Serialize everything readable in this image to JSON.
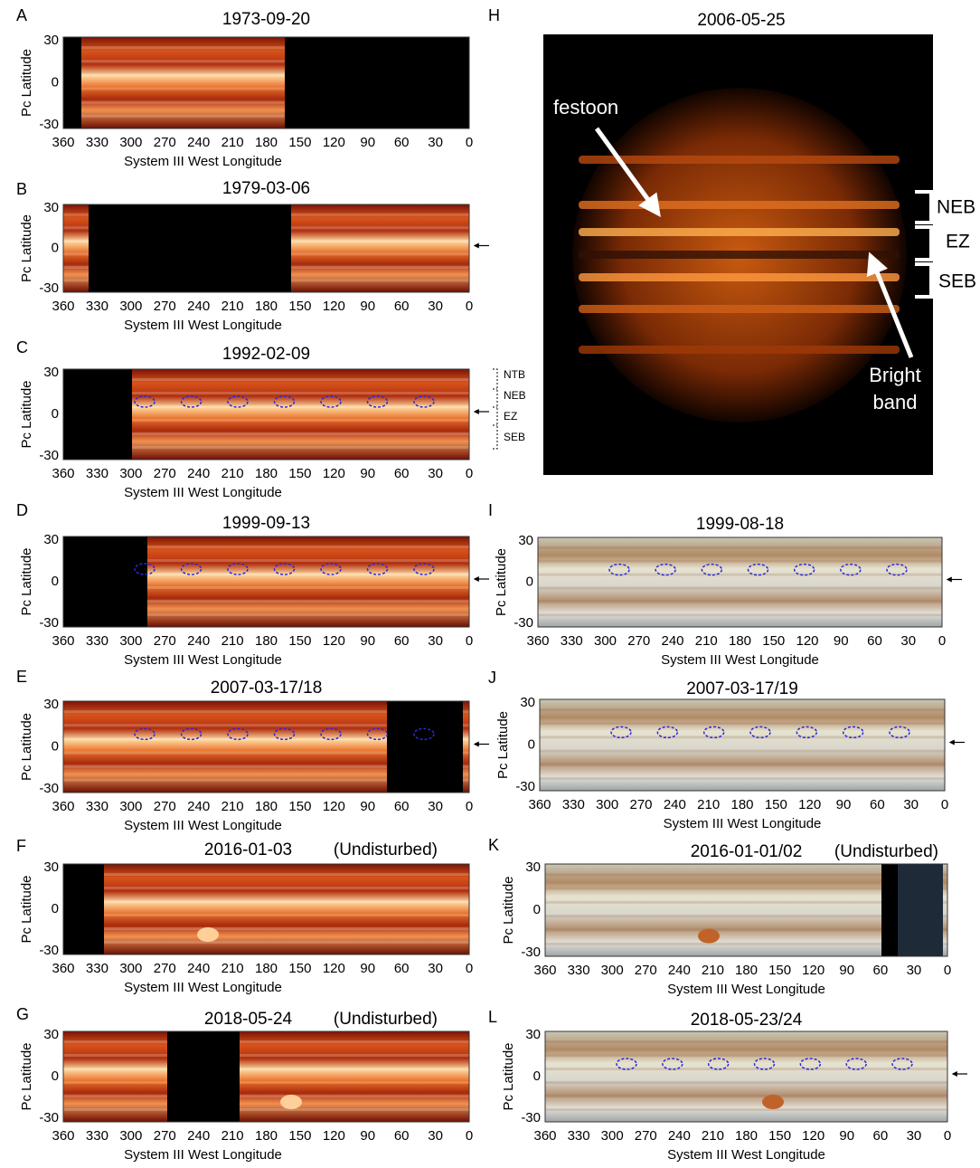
{
  "panels": [
    {
      "letter": "A",
      "title": "1973-09-20",
      "ylabel": "Pc Latitude",
      "xlabel": "System III West Longitude",
      "yticks": [
        30,
        0,
        -30
      ],
      "xticks": [
        360,
        330,
        300,
        270,
        240,
        210,
        180,
        150,
        120,
        90,
        60,
        30,
        0
      ]
    },
    {
      "letter": "B",
      "title": "1979-03-06",
      "ylabel": "Pc Latitude",
      "xlabel": "System III West Longitude",
      "yticks": [
        30,
        0,
        -30
      ],
      "xticks": [
        360,
        330,
        300,
        270,
        240,
        210,
        180,
        150,
        120,
        90,
        60,
        30,
        0
      ]
    },
    {
      "letter": "C",
      "title": "1992-02-09",
      "ylabel": "Pc Latitude",
      "xlabel": "System III West Longitude",
      "yticks": [
        30,
        0,
        -30
      ],
      "xticks": [
        360,
        330,
        300,
        270,
        240,
        210,
        180,
        150,
        120,
        90,
        60,
        30,
        0
      ],
      "belts": [
        "NTB",
        "NEB",
        "EZ",
        "SEB"
      ]
    },
    {
      "letter": "D",
      "title": "1999-09-13",
      "ylabel": "Pc Latitude",
      "xlabel": "System III West Longitude",
      "yticks": [
        30,
        0,
        -30
      ],
      "xticks": [
        360,
        330,
        300,
        270,
        240,
        210,
        180,
        150,
        120,
        90,
        60,
        30,
        0
      ]
    },
    {
      "letter": "E",
      "title": "2007-03-17/18",
      "ylabel": "Pc Latitude",
      "xlabel": "System III West Longitude",
      "yticks": [
        30,
        0,
        -30
      ],
      "xticks": [
        360,
        330,
        300,
        270,
        240,
        210,
        180,
        150,
        120,
        90,
        60,
        30,
        0
      ]
    },
    {
      "letter": "F",
      "title": "2016-01-03",
      "note": "(Undisturbed)",
      "ylabel": "Pc Latitude",
      "xlabel": "System III West Longitude",
      "yticks": [
        30,
        0,
        -30
      ],
      "xticks": [
        360,
        330,
        300,
        270,
        240,
        210,
        180,
        150,
        120,
        90,
        60,
        30,
        0
      ]
    },
    {
      "letter": "G",
      "title": "2018-05-24",
      "note": "(Undisturbed)",
      "ylabel": "Pc Latitude",
      "xlabel": "System III West Longitude",
      "yticks": [
        30,
        0,
        -30
      ],
      "xticks": [
        360,
        330,
        300,
        270,
        240,
        210,
        180,
        150,
        120,
        90,
        60,
        30,
        0
      ]
    },
    {
      "letter": "H",
      "title": "2006-05-25",
      "labels": [
        "festoon",
        "NEB",
        "EZ",
        "SEB",
        "Bright band"
      ]
    },
    {
      "letter": "I",
      "title": "1999-08-18",
      "ylabel": "Pc Latitude",
      "xlabel": "System III West Longitude",
      "yticks": [
        30,
        0,
        -30
      ],
      "xticks": [
        360,
        330,
        300,
        270,
        240,
        210,
        180,
        150,
        120,
        90,
        60,
        30,
        0
      ]
    },
    {
      "letter": "J",
      "title": "2007-03-17/19",
      "ylabel": "Pc Latitude",
      "xlabel": "System III West Longitude",
      "yticks": [
        30,
        0,
        -30
      ],
      "xticks": [
        360,
        330,
        300,
        270,
        240,
        210,
        180,
        150,
        120,
        90,
        60,
        30,
        0
      ]
    },
    {
      "letter": "K",
      "title": "2016-01-01/02",
      "note": "(Undisturbed)",
      "ylabel": "Pc Latitude",
      "xlabel": "System III West Longitude",
      "yticks": [
        30,
        0,
        -30
      ],
      "xticks": [
        360,
        330,
        300,
        270,
        240,
        210,
        180,
        150,
        120,
        90,
        60,
        30,
        0
      ]
    },
    {
      "letter": "L",
      "title": "2018-05-23/24",
      "ylabel": "Pc Latitude",
      "xlabel": "System III West Longitude",
      "yticks": [
        30,
        0,
        -30
      ],
      "xticks": [
        360,
        330,
        300,
        270,
        240,
        210,
        180,
        150,
        120,
        90,
        60,
        30,
        0
      ]
    }
  ]
}
